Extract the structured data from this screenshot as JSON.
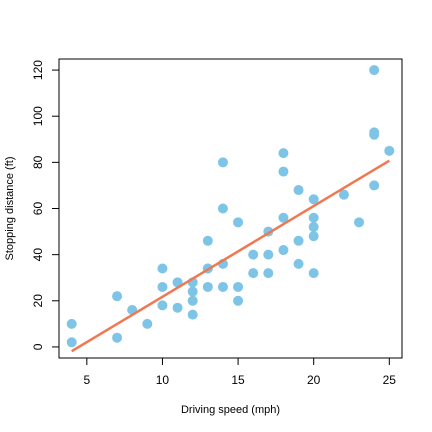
{
  "chart_data": {
    "type": "scatter",
    "title": "",
    "xlabel": "Driving speed (mph)",
    "ylabel": "Stopping distance (ft)",
    "xlim": [
      3.16,
      25.84
    ],
    "ylim": [
      -4.8,
      124.8
    ],
    "xticks": [
      5,
      10,
      15,
      20,
      25
    ],
    "yticks": [
      0,
      20,
      40,
      60,
      80,
      100,
      120
    ],
    "grid": false,
    "points": [
      [
        4,
        2
      ],
      [
        4,
        10
      ],
      [
        7,
        4
      ],
      [
        7,
        22
      ],
      [
        8,
        16
      ],
      [
        9,
        10
      ],
      [
        10,
        18
      ],
      [
        10,
        26
      ],
      [
        10,
        34
      ],
      [
        11,
        17
      ],
      [
        11,
        28
      ],
      [
        12,
        14
      ],
      [
        12,
        20
      ],
      [
        12,
        24
      ],
      [
        12,
        28
      ],
      [
        13,
        26
      ],
      [
        13,
        34
      ],
      [
        13,
        34
      ],
      [
        13,
        46
      ],
      [
        14,
        26
      ],
      [
        14,
        36
      ],
      [
        14,
        60
      ],
      [
        14,
        80
      ],
      [
        15,
        20
      ],
      [
        15,
        26
      ],
      [
        15,
        54
      ],
      [
        16,
        32
      ],
      [
        16,
        40
      ],
      [
        17,
        32
      ],
      [
        17,
        40
      ],
      [
        17,
        50
      ],
      [
        18,
        42
      ],
      [
        18,
        56
      ],
      [
        18,
        76
      ],
      [
        18,
        84
      ],
      [
        19,
        36
      ],
      [
        19,
        46
      ],
      [
        19,
        68
      ],
      [
        20,
        32
      ],
      [
        20,
        48
      ],
      [
        20,
        52
      ],
      [
        20,
        56
      ],
      [
        20,
        64
      ],
      [
        22,
        66
      ],
      [
        23,
        54
      ],
      [
        24,
        70
      ],
      [
        24,
        92
      ],
      [
        24,
        93
      ],
      [
        24,
        120
      ],
      [
        25,
        85
      ]
    ],
    "fit_line": {
      "x": [
        4,
        25
      ],
      "y": [
        -1.85,
        80.73
      ]
    },
    "point_color": "#7ec4e6",
    "line_color": "#f07850"
  }
}
